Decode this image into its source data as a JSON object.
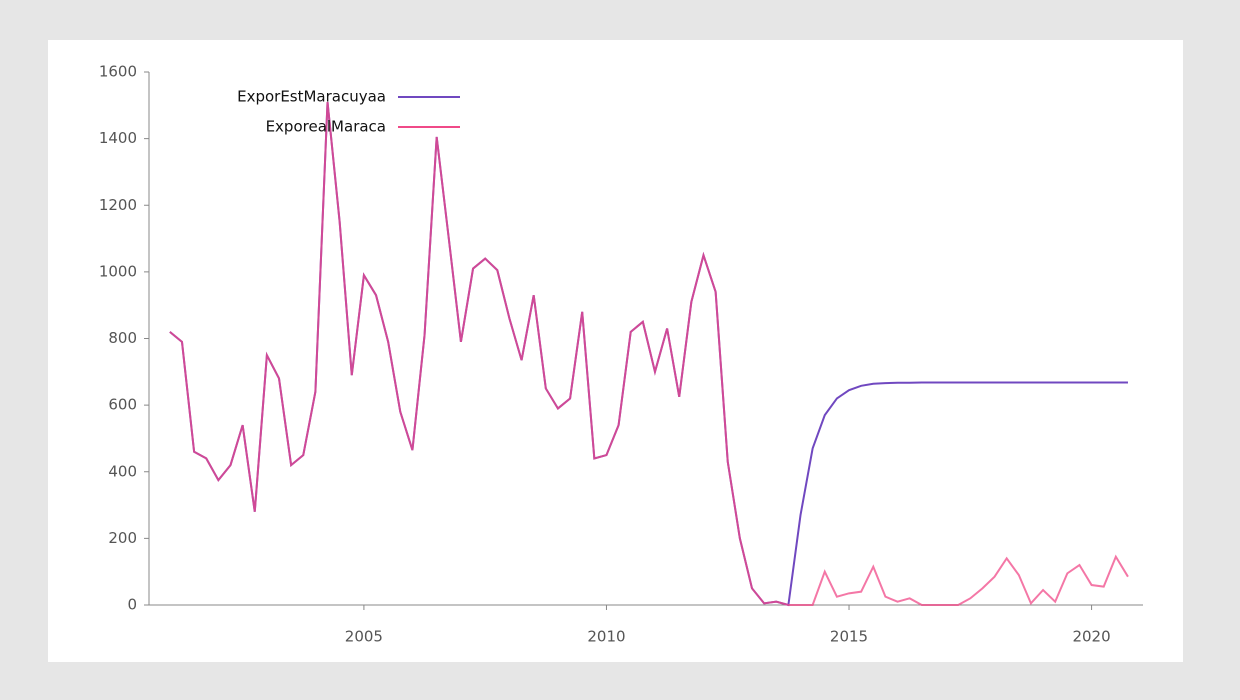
{
  "chart_data": {
    "type": "line",
    "x": [
      2001,
      2001.25,
      2001.5,
      2001.75,
      2002,
      2002.25,
      2002.5,
      2002.75,
      2003,
      2003.25,
      2003.5,
      2003.75,
      2004,
      2004.25,
      2004.5,
      2004.75,
      2005,
      2005.25,
      2005.5,
      2005.75,
      2006,
      2006.25,
      2006.5,
      2006.75,
      2007,
      2007.25,
      2007.5,
      2007.75,
      2008,
      2008.25,
      2008.5,
      2008.75,
      2009,
      2009.25,
      2009.5,
      2009.75,
      2010,
      2010.25,
      2010.5,
      2010.75,
      2011,
      2011.25,
      2011.5,
      2011.75,
      2012,
      2012.25,
      2012.5,
      2012.75,
      2013,
      2013.25,
      2013.5,
      2013.75,
      2014,
      2014.25,
      2014.5,
      2014.75,
      2015,
      2015.25,
      2015.5,
      2015.75,
      2016,
      2016.25,
      2016.5,
      2016.75,
      2017,
      2017.25,
      2017.5,
      2017.75,
      2018,
      2018.25,
      2018.5,
      2018.75,
      2019,
      2019.25,
      2019.5,
      2019.75,
      2020,
      2020.25,
      2020.5,
      2020.75
    ],
    "series": [
      {
        "name": "ExporEstMaracuyaa",
        "color": "#7048c0",
        "values": [
          820,
          790,
          460,
          440,
          375,
          420,
          540,
          280,
          750,
          680,
          420,
          450,
          640,
          1510,
          1150,
          690,
          990,
          930,
          790,
          580,
          465,
          810,
          1405,
          1100,
          790,
          1010,
          1040,
          1005,
          860,
          735,
          930,
          650,
          590,
          620,
          880,
          440,
          450,
          540,
          820,
          850,
          700,
          830,
          625,
          910,
          1050,
          940,
          430,
          200,
          50,
          5,
          10,
          0,
          270,
          470,
          570,
          620,
          645,
          658,
          664,
          666,
          667,
          667,
          668,
          668,
          668,
          668,
          668,
          668,
          668,
          668,
          668,
          668,
          668,
          668,
          668,
          668,
          668,
          668,
          668,
          668
        ]
      },
      {
        "name": "ExporealMaraca",
        "color": "#f04a88",
        "values": [
          820,
          790,
          460,
          440,
          375,
          420,
          540,
          280,
          750,
          680,
          420,
          450,
          640,
          1510,
          1150,
          690,
          990,
          930,
          790,
          580,
          465,
          810,
          1405,
          1100,
          790,
          1010,
          1040,
          1005,
          860,
          735,
          930,
          650,
          590,
          620,
          880,
          440,
          450,
          540,
          820,
          850,
          700,
          830,
          625,
          910,
          1050,
          940,
          430,
          200,
          50,
          5,
          10,
          0,
          0,
          0,
          100,
          25,
          35,
          40,
          115,
          25,
          10,
          20,
          0,
          0,
          0,
          0,
          20,
          50,
          85,
          140,
          90,
          5,
          45,
          10,
          95,
          120,
          60,
          55,
          145,
          85
        ]
      }
    ],
    "xlim": [
      2000.57,
      2021.06
    ],
    "xticks": [
      2005,
      2010,
      2015,
      2020
    ],
    "ylim": [
      0,
      1600
    ],
    "yticks": [
      0,
      200,
      400,
      600,
      800,
      1000,
      1200,
      1400,
      1600
    ],
    "legend": "top-left"
  }
}
